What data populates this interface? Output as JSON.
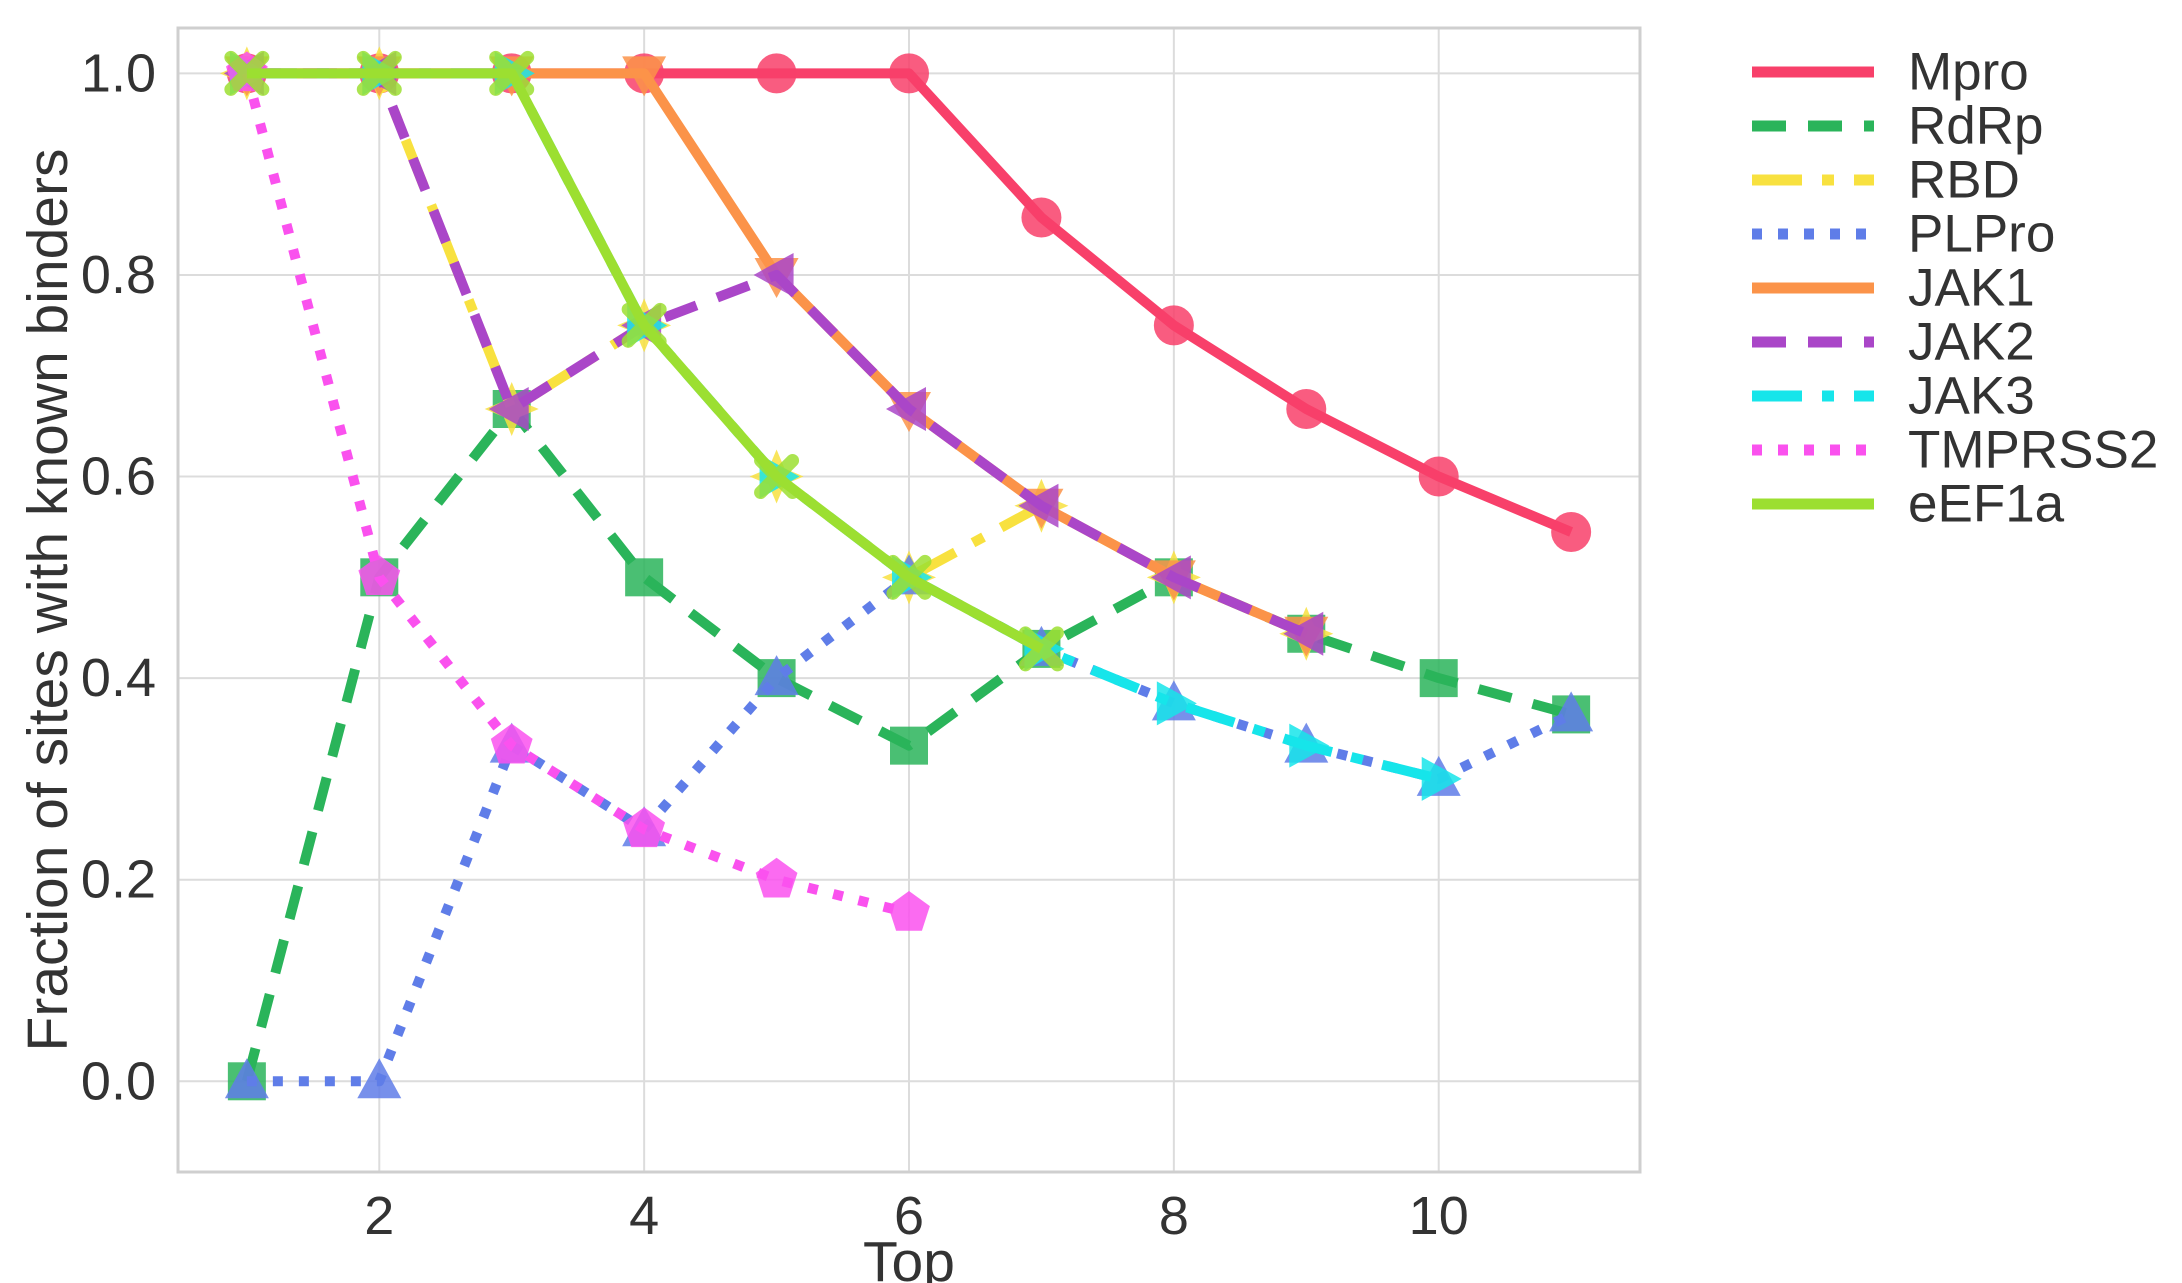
{
  "chart_data": {
    "type": "line",
    "title": "",
    "xlabel": "Top",
    "ylabel": "Fraction of sites with known binders",
    "xlim": [
      0.48,
      11.52
    ],
    "ylim": [
      -0.09,
      1.045
    ],
    "x_ticks": [
      2,
      4,
      6,
      8,
      10
    ],
    "y_ticks": [
      0.0,
      0.2,
      0.4,
      0.6,
      0.8,
      1.0
    ],
    "grid": true,
    "legend_position": "right-outside",
    "colors": {
      "text": "#333333",
      "grid": "#dcdcdc",
      "plot_border": "#cfcfcf",
      "background": "#ffffff"
    },
    "series": [
      {
        "name": "Mpro",
        "color": "#F8406A",
        "line_style": "solid",
        "marker": "circle",
        "x": [
          1,
          2,
          3,
          4,
          5,
          6,
          7,
          8,
          9,
          10,
          11
        ],
        "y": [
          1.0,
          1.0,
          1.0,
          1.0,
          1.0,
          1.0,
          0.857,
          0.75,
          0.667,
          0.6,
          0.545
        ]
      },
      {
        "name": "RdRp",
        "color": "#2AB45A",
        "line_style": "dashed",
        "marker": "square",
        "x": [
          1,
          2,
          3,
          4,
          5,
          6,
          7,
          8,
          9,
          10,
          11
        ],
        "y": [
          0.0,
          0.5,
          0.667,
          0.5,
          0.4,
          0.333,
          0.429,
          0.5,
          0.444,
          0.4,
          0.364
        ]
      },
      {
        "name": "RBD",
        "color": "#F8E13F",
        "line_style": "dashdot",
        "marker": "star4",
        "x": [
          1,
          2,
          3,
          4,
          5,
          6,
          7,
          8,
          9
        ],
        "y": [
          1.0,
          1.0,
          0.667,
          0.75,
          0.6,
          0.5,
          0.571,
          0.5,
          0.444
        ]
      },
      {
        "name": "PLPro",
        "color": "#5F7DE8",
        "line_style": "dotted",
        "marker": "triangle-up",
        "x": [
          1,
          2,
          3,
          4,
          5,
          6,
          7,
          8,
          9,
          10,
          11
        ],
        "y": [
          0.0,
          0.0,
          0.333,
          0.25,
          0.4,
          0.5,
          0.429,
          0.375,
          0.333,
          0.3,
          0.364
        ]
      },
      {
        "name": "JAK1",
        "color": "#FB9349",
        "line_style": "solid",
        "marker": "triangle-down",
        "x": [
          1,
          2,
          3,
          4,
          5,
          6,
          7,
          8,
          9
        ],
        "y": [
          1.0,
          1.0,
          1.0,
          1.0,
          0.8,
          0.667,
          0.571,
          0.5,
          0.444
        ]
      },
      {
        "name": "JAK2",
        "color": "#AA46C8",
        "line_style": "dashed",
        "marker": "triangle-left",
        "x": [
          1,
          2,
          3,
          4,
          5,
          6,
          7,
          8,
          9
        ],
        "y": [
          1.0,
          1.0,
          0.667,
          0.75,
          0.8,
          0.667,
          0.571,
          0.5,
          0.444
        ]
      },
      {
        "name": "JAK3",
        "color": "#16E5EA",
        "line_style": "dashdot",
        "marker": "triangle-right",
        "x": [
          1,
          2,
          3,
          4,
          5,
          6,
          7,
          8,
          9,
          10
        ],
        "y": [
          1.0,
          1.0,
          1.0,
          0.75,
          0.6,
          0.5,
          0.429,
          0.375,
          0.333,
          0.3
        ]
      },
      {
        "name": "TMPRSS2",
        "color": "#FA51EE",
        "line_style": "dotted",
        "marker": "pentagon",
        "x": [
          1,
          2,
          3,
          4,
          5,
          6
        ],
        "y": [
          1.0,
          0.5,
          0.333,
          0.25,
          0.2,
          0.167
        ]
      },
      {
        "name": "eEF1a",
        "color": "#9CDF31",
        "line_style": "solid",
        "marker": "x",
        "x": [
          1,
          2,
          3,
          4,
          5,
          6,
          7
        ],
        "y": [
          1.0,
          1.0,
          1.0,
          0.75,
          0.6,
          0.5,
          0.429
        ]
      }
    ]
  }
}
